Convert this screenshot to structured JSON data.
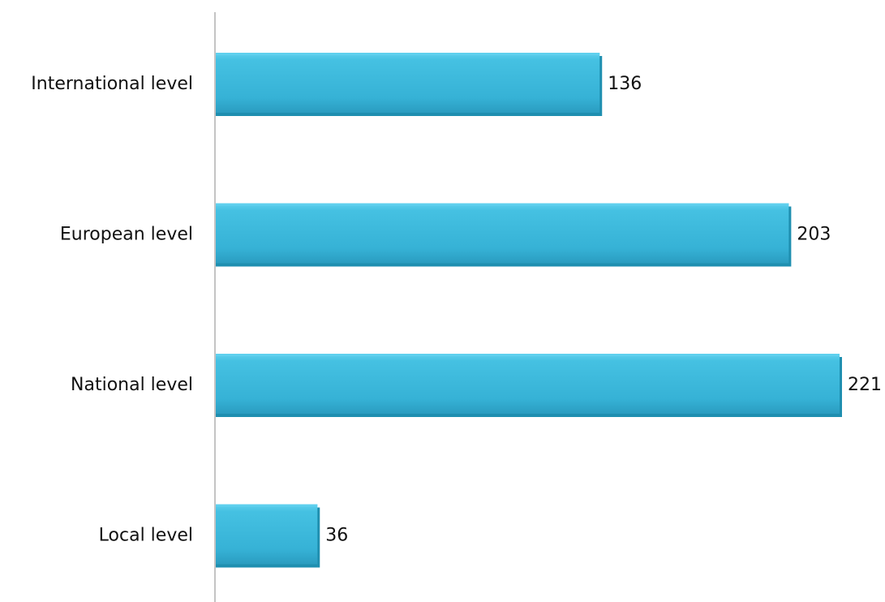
{
  "chart_data": {
    "type": "bar",
    "orientation": "horizontal",
    "categories": [
      "International level",
      "European level",
      "National level",
      "Local level"
    ],
    "values": [
      136,
      203,
      221,
      36
    ],
    "title": "",
    "xlabel": "",
    "ylabel": "",
    "xlim": [
      0,
      221
    ],
    "grid": false,
    "legend": "none",
    "data_labels": true,
    "bar_color": "#3ab8dc",
    "bar_color_light": "#5fd0ee",
    "bar_color_dark": "#1f8fb0",
    "axis_color": "#888888"
  }
}
